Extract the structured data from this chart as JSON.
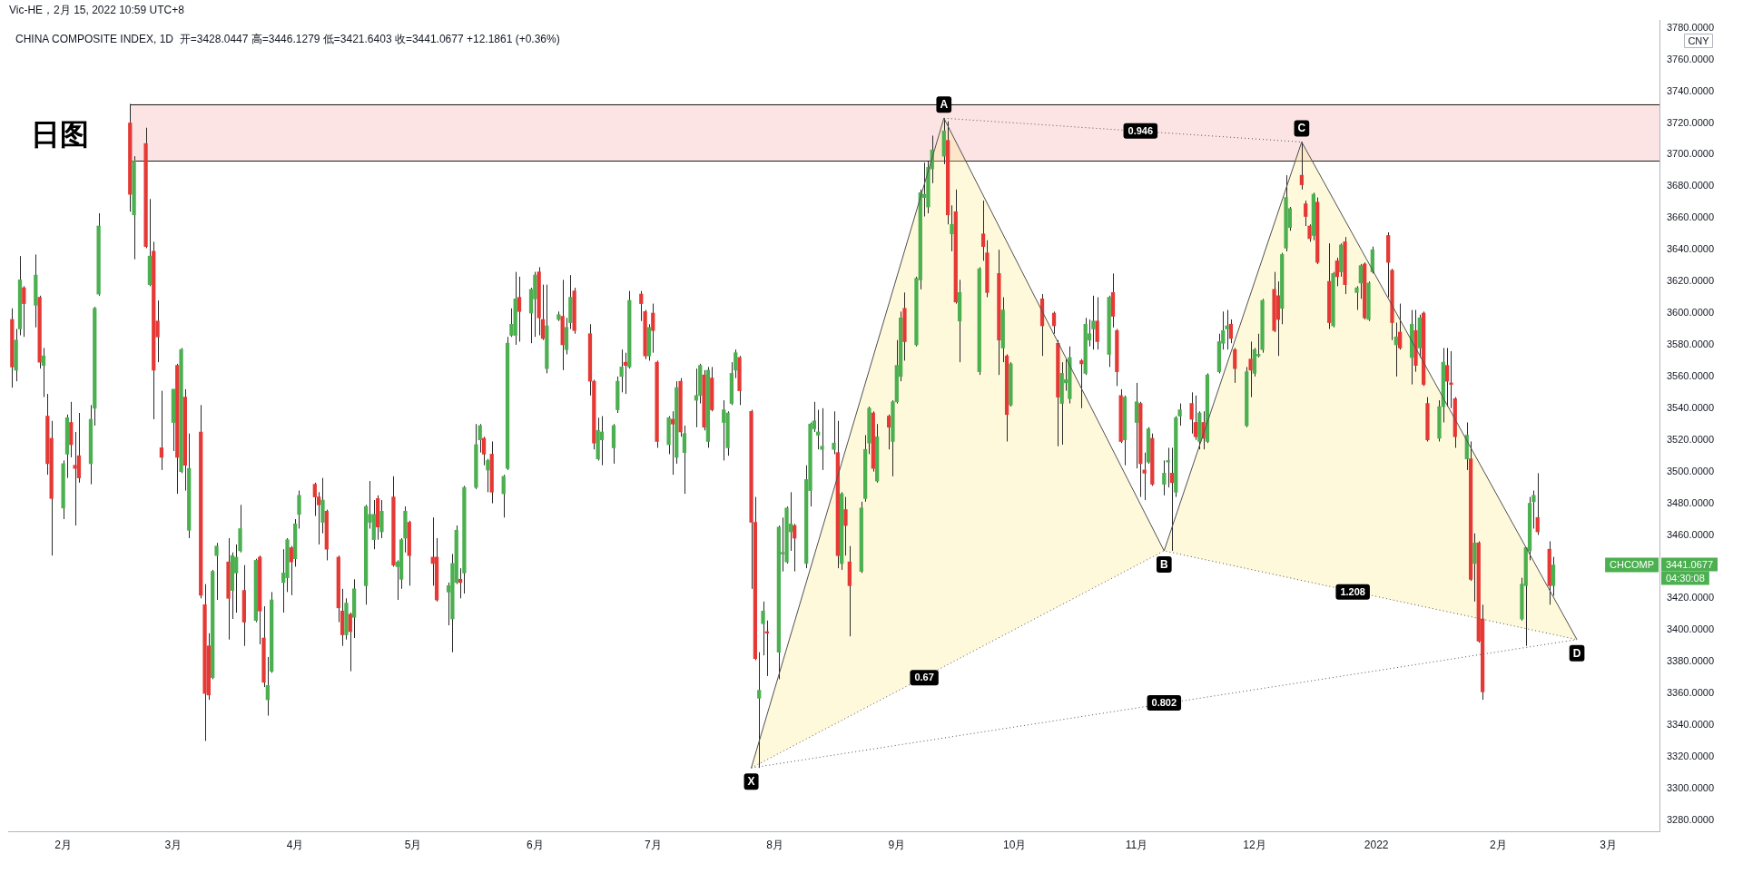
{
  "chart_data": {
    "type": "candlestick",
    "title": "日图",
    "subtitle": "CHINA COMPOSITE INDEX, 1D  开=3428.0447 高=3446.1279 低=3421.6403 收=3441.0677 +12.1861 (+0.36%)",
    "ylabel": "CNY",
    "x": [
      "2021-01-19",
      "2021-01-20",
      "2021-01-21",
      "2021-01-22",
      "2021-01-25",
      "2021-01-26",
      "2021-01-27",
      "2021-01-28",
      "2021-01-29",
      "2021-02-01",
      "2021-02-02",
      "2021-02-03",
      "2021-02-04",
      "2021-02-05",
      "2021-02-08",
      "2021-02-09",
      "2021-02-10",
      "2021-02-18",
      "2021-02-19",
      "2021-02-22",
      "2021-02-23",
      "2021-02-24",
      "2021-02-25",
      "2021-02-26",
      "2021-03-01",
      "2021-03-02",
      "2021-03-03",
      "2021-03-04",
      "2021-03-05",
      "2021-03-08",
      "2021-03-09",
      "2021-03-10",
      "2021-03-11",
      "2021-03-12",
      "2021-03-15",
      "2021-03-16",
      "2021-03-17",
      "2021-03-18",
      "2021-03-19",
      "2021-03-22",
      "2021-03-23",
      "2021-03-24",
      "2021-03-25",
      "2021-03-26",
      "2021-03-29",
      "2021-03-30",
      "2021-03-31",
      "2021-04-01",
      "2021-04-02",
      "2021-04-06",
      "2021-04-07",
      "2021-04-08",
      "2021-04-09",
      "2021-04-12",
      "2021-04-13",
      "2021-04-14",
      "2021-04-15",
      "2021-04-16",
      "2021-04-19",
      "2021-04-20",
      "2021-04-21",
      "2021-04-22",
      "2021-04-23",
      "2021-04-26",
      "2021-04-27",
      "2021-04-28",
      "2021-04-29",
      "2021-04-30",
      "2021-05-06",
      "2021-05-07",
      "2021-05-10",
      "2021-05-11",
      "2021-05-12",
      "2021-05-13",
      "2021-05-14",
      "2021-05-17",
      "2021-05-18",
      "2021-05-19",
      "2021-05-20",
      "2021-05-21",
      "2021-05-24",
      "2021-05-25",
      "2021-05-26",
      "2021-05-27",
      "2021-05-28",
      "2021-05-31",
      "2021-06-01",
      "2021-06-02",
      "2021-06-03",
      "2021-06-04",
      "2021-06-07",
      "2021-06-08",
      "2021-06-09",
      "2021-06-10",
      "2021-06-11",
      "2021-06-15",
      "2021-06-16",
      "2021-06-17",
      "2021-06-18",
      "2021-06-21",
      "2021-06-22",
      "2021-06-23",
      "2021-06-24",
      "2021-06-25",
      "2021-06-28",
      "2021-06-29",
      "2021-06-30",
      "2021-07-01",
      "2021-07-02",
      "2021-07-05",
      "2021-07-06",
      "2021-07-07",
      "2021-07-08",
      "2021-07-09",
      "2021-07-12",
      "2021-07-13",
      "2021-07-14",
      "2021-07-15",
      "2021-07-16",
      "2021-07-19",
      "2021-07-20",
      "2021-07-21",
      "2021-07-22",
      "2021-07-23",
      "2021-07-26",
      "2021-07-27",
      "2021-07-28",
      "2021-07-29",
      "2021-07-30",
      "2021-08-02",
      "2021-08-03",
      "2021-08-04",
      "2021-08-05",
      "2021-08-06",
      "2021-08-09",
      "2021-08-10",
      "2021-08-11",
      "2021-08-12",
      "2021-08-13",
      "2021-08-16",
      "2021-08-17",
      "2021-08-18",
      "2021-08-19",
      "2021-08-20",
      "2021-08-23",
      "2021-08-24",
      "2021-08-25",
      "2021-08-26",
      "2021-08-27",
      "2021-08-30",
      "2021-08-31",
      "2021-09-01",
      "2021-09-02",
      "2021-09-03",
      "2021-09-06",
      "2021-09-07",
      "2021-09-08",
      "2021-09-09",
      "2021-09-10",
      "2021-09-13",
      "2021-09-14",
      "2021-09-15",
      "2021-09-16",
      "2021-09-17",
      "2021-09-22",
      "2021-09-23",
      "2021-09-24",
      "2021-09-27",
      "2021-09-28",
      "2021-09-29",
      "2021-09-30",
      "2021-10-08",
      "2021-10-11",
      "2021-10-12",
      "2021-10-13",
      "2021-10-14",
      "2021-10-15",
      "2021-10-18",
      "2021-10-19",
      "2021-10-20",
      "2021-10-21",
      "2021-10-22",
      "2021-10-25",
      "2021-10-26",
      "2021-10-27",
      "2021-10-28",
      "2021-10-29",
      "2021-11-01",
      "2021-11-02",
      "2021-11-03",
      "2021-11-04",
      "2021-11-05",
      "2021-11-08",
      "2021-11-09",
      "2021-11-10",
      "2021-11-11",
      "2021-11-12",
      "2021-11-15",
      "2021-11-16",
      "2021-11-17",
      "2021-11-18",
      "2021-11-19",
      "2021-11-22",
      "2021-11-23",
      "2021-11-24",
      "2021-11-25",
      "2021-11-26",
      "2021-11-29",
      "2021-11-30",
      "2021-12-01",
      "2021-12-02",
      "2021-12-03",
      "2021-12-06",
      "2021-12-07",
      "2021-12-08",
      "2021-12-09",
      "2021-12-10",
      "2021-12-13",
      "2021-12-14",
      "2021-12-15",
      "2021-12-16",
      "2021-12-17",
      "2021-12-20",
      "2021-12-21",
      "2021-12-22",
      "2021-12-23",
      "2021-12-24",
      "2021-12-27",
      "2021-12-28",
      "2021-12-29",
      "2021-12-30",
      "2021-12-31",
      "2022-01-04",
      "2022-01-05",
      "2022-01-06",
      "2022-01-07",
      "2022-01-10",
      "2022-01-11",
      "2022-01-12",
      "2022-01-13",
      "2022-01-14",
      "2022-01-17",
      "2022-01-18",
      "2022-01-19",
      "2022-01-20",
      "2022-01-21",
      "2022-01-24",
      "2022-01-25",
      "2022-01-26",
      "2022-01-27",
      "2022-01-28",
      "2022-02-07",
      "2022-02-08",
      "2022-02-09",
      "2022-02-10",
      "2022-02-11",
      "2022-02-14",
      "2022-02-15"
    ],
    "ohlc": [
      [
        3596,
        3603,
        3553,
        3566
      ],
      [
        3564,
        3590,
        3557,
        3583
      ],
      [
        3590,
        3636,
        3586,
        3621
      ],
      [
        3616,
        3617,
        3585,
        3606
      ],
      [
        3605,
        3637,
        3591,
        3624
      ],
      [
        3610,
        3611,
        3565,
        3569
      ],
      [
        3567,
        3578,
        3547,
        3573
      ],
      [
        3535,
        3549,
        3498,
        3505
      ],
      [
        3521,
        3532,
        3447,
        3483
      ],
      [
        3477,
        3507,
        3470,
        3505
      ],
      [
        3511,
        3536,
        3496,
        3534
      ],
      [
        3531,
        3544,
        3509,
        3517
      ],
      [
        3504,
        3525,
        3466,
        3502
      ],
      [
        3510,
        3537,
        3493,
        3496
      ],
      [
        3505,
        3542,
        3492,
        3533
      ],
      [
        3540,
        3604,
        3529,
        3603
      ],
      [
        3612,
        3663,
        3611,
        3655
      ],
      [
        3720,
        3732,
        3664,
        3675
      ],
      [
        3662,
        3699,
        3634,
        3696
      ],
      [
        3707,
        3717,
        3641,
        3642
      ],
      [
        3618,
        3672,
        3617,
        3636
      ],
      [
        3639,
        3645,
        3533,
        3564
      ],
      [
        3595,
        3608,
        3569,
        3585
      ],
      [
        3515,
        3551,
        3501,
        3509
      ],
      [
        3531,
        3552,
        3513,
        3552
      ],
      [
        3567,
        3568,
        3486,
        3509
      ],
      [
        3500,
        3578,
        3499,
        3577
      ],
      [
        3547,
        3552,
        3488,
        3504
      ],
      [
        3463,
        3524,
        3458,
        3502
      ],
      [
        3525,
        3542,
        3420,
        3422
      ],
      [
        3416,
        3429,
        3330,
        3360
      ],
      [
        3390,
        3398,
        3356,
        3359
      ],
      [
        3370,
        3438,
        3369,
        3437
      ],
      [
        3447,
        3455,
        3419,
        3453
      ],
      [
        3443,
        3458,
        3394,
        3420
      ],
      [
        3425,
        3449,
        3407,
        3447
      ],
      [
        3436,
        3454,
        3411,
        3446
      ],
      [
        3450,
        3479,
        3449,
        3464
      ],
      [
        3425,
        3441,
        3390,
        3405
      ],
      [
        3406,
        3445,
        3405,
        3444
      ],
      [
        3446,
        3447,
        3391,
        3412
      ],
      [
        3395,
        3415,
        3364,
        3367
      ],
      [
        3356,
        3383,
        3346,
        3365
      ],
      [
        3374,
        3424,
        3373,
        3419
      ],
      [
        3430,
        3451,
        3411,
        3436
      ],
      [
        3433,
        3458,
        3424,
        3457
      ],
      [
        3452,
        3453,
        3422,
        3443
      ],
      [
        3445,
        3470,
        3440,
        3467
      ],
      [
        3473,
        3488,
        3464,
        3485
      ],
      [
        3492,
        3493,
        3472,
        3484
      ],
      [
        3484,
        3487,
        3454,
        3479
      ],
      [
        3468,
        3496,
        3461,
        3482
      ],
      [
        3475,
        3476,
        3444,
        3451
      ],
      [
        3446,
        3447,
        3405,
        3414
      ],
      [
        3412,
        3426,
        3390,
        3397
      ],
      [
        3397,
        3420,
        3394,
        3417
      ],
      [
        3410,
        3411,
        3374,
        3399
      ],
      [
        3408,
        3432,
        3395,
        3426
      ],
      [
        3428,
        3479,
        3416,
        3478
      ],
      [
        3468,
        3494,
        3464,
        3473
      ],
      [
        3457,
        3482,
        3451,
        3473
      ],
      [
        3483,
        3485,
        3457,
        3465
      ],
      [
        3462,
        3482,
        3458,
        3475
      ],
      [
        3484,
        3497,
        3440,
        3441
      ],
      [
        3440,
        3444,
        3419,
        3443
      ],
      [
        3432,
        3458,
        3426,
        3457
      ],
      [
        3458,
        3478,
        3449,
        3475
      ],
      [
        3468,
        3469,
        3428,
        3447
      ],
      [
        3446,
        3471,
        3428,
        3442
      ],
      [
        3446,
        3458,
        3418,
        3419
      ],
      [
        3424,
        3430,
        3403,
        3428
      ],
      [
        3407,
        3448,
        3386,
        3442
      ],
      [
        3430,
        3466,
        3429,
        3463
      ],
      [
        3432,
        3439,
        3420,
        3430
      ],
      [
        3436,
        3491,
        3423,
        3490
      ],
      [
        3490,
        3530,
        3489,
        3517
      ],
      [
        3520,
        3530,
        3512,
        3529
      ],
      [
        3521,
        3522,
        3504,
        3511
      ],
      [
        3501,
        3508,
        3487,
        3507
      ],
      [
        3511,
        3519,
        3480,
        3487
      ],
      [
        3486,
        3498,
        3471,
        3497
      ],
      [
        3502,
        3585,
        3501,
        3581
      ],
      [
        3586,
        3603,
        3585,
        3593
      ],
      [
        3586,
        3626,
        3580,
        3609
      ],
      [
        3610,
        3623,
        3582,
        3601
      ],
      [
        3600,
        3616,
        3581,
        3615
      ],
      [
        3609,
        3626,
        3585,
        3624
      ],
      [
        3626,
        3629,
        3586,
        3597
      ],
      [
        3596,
        3618,
        3583,
        3584
      ],
      [
        3565,
        3618,
        3562,
        3592
      ],
      [
        3596,
        3601,
        3595,
        3599
      ],
      [
        3598,
        3621,
        3564,
        3580
      ],
      [
        3577,
        3597,
        3574,
        3591
      ],
      [
        3594,
        3624,
        3590,
        3610
      ],
      [
        3614,
        3616,
        3587,
        3589
      ],
      [
        3587,
        3593,
        3548,
        3557
      ],
      [
        3557,
        3558,
        3514,
        3518
      ],
      [
        3508,
        3534,
        3507,
        3526
      ],
      [
        3520,
        3535,
        3504,
        3525
      ],
      [
        3515,
        3530,
        3505,
        3529
      ],
      [
        3539,
        3560,
        3537,
        3557
      ],
      [
        3560,
        3577,
        3550,
        3566
      ],
      [
        3569,
        3575,
        3549,
        3567
      ],
      [
        3566,
        3614,
        3565,
        3608
      ],
      [
        3612,
        3614,
        3595,
        3606
      ],
      [
        3601,
        3602,
        3571,
        3573
      ],
      [
        3573,
        3593,
        3570,
        3591
      ],
      [
        3600,
        3606,
        3575,
        3589
      ],
      [
        3569,
        3570,
        3515,
        3519
      ],
      [
        3517,
        3535,
        3511,
        3534
      ],
      [
        3533,
        3538,
        3498,
        3530
      ],
      [
        3509,
        3557,
        3505,
        3553
      ],
      [
        3557,
        3559,
        3522,
        3525
      ],
      [
        3512,
        3529,
        3486,
        3524
      ],
      [
        3545,
        3565,
        3528,
        3548
      ],
      [
        3548,
        3568,
        3543,
        3567
      ],
      [
        3561,
        3564,
        3526,
        3528
      ],
      [
        3519,
        3566,
        3515,
        3564
      ],
      [
        3559,
        3566,
        3538,
        3539
      ],
      [
        3531,
        3545,
        3507,
        3539
      ],
      [
        3515,
        3538,
        3510,
        3537
      ],
      [
        3543,
        3569,
        3542,
        3562
      ],
      [
        3564,
        3577,
        3559,
        3575
      ],
      [
        3572,
        3573,
        3542,
        3551
      ],
      [
        3538,
        3539,
        3426,
        3468
      ],
      [
        3468,
        3484,
        3381,
        3382
      ],
      [
        3357,
        3386,
        3313,
        3362
      ],
      [
        3404,
        3418,
        3384,
        3412
      ],
      [
        3399,
        3406,
        3371,
        3398
      ],
      [
        3386,
        3466,
        3369,
        3465
      ],
      [
        3448,
        3471,
        3437,
        3449
      ],
      [
        3443,
        3478,
        3442,
        3477
      ],
      [
        3462,
        3487,
        3450,
        3467
      ],
      [
        3466,
        3467,
        3437,
        3458
      ],
      [
        3442,
        3504,
        3439,
        3495
      ],
      [
        3488,
        3531,
        3478,
        3530
      ],
      [
        3527,
        3544,
        3525,
        3532
      ],
      [
        3523,
        3539,
        3514,
        3525
      ],
      [
        3514,
        3540,
        3501,
        3516
      ],
      [
        3514,
        3538,
        3511,
        3518
      ],
      [
        3512,
        3532,
        3439,
        3447
      ],
      [
        3442,
        3487,
        3438,
        3486
      ],
      [
        3476,
        3484,
        3447,
        3466
      ],
      [
        3443,
        3453,
        3396,
        3428
      ],
      [
        3437,
        3481,
        3436,
        3477
      ],
      [
        3483,
        3523,
        3481,
        3514
      ],
      [
        3518,
        3541,
        3511,
        3540
      ],
      [
        3537,
        3538,
        3500,
        3502
      ],
      [
        3494,
        3530,
        3493,
        3522
      ],
      [
        3535,
        3536,
        3514,
        3528
      ],
      [
        3519,
        3545,
        3497,
        3544
      ],
      [
        3544,
        3583,
        3543,
        3567
      ],
      [
        3560,
        3601,
        3557,
        3597
      ],
      [
        3603,
        3613,
        3570,
        3582
      ],
      [
        3580,
        3623,
        3579,
        3622
      ],
      [
        3621,
        3678,
        3615,
        3676
      ],
      [
        3673,
        3695,
        3661,
        3675
      ],
      [
        3667,
        3696,
        3663,
        3692
      ],
      [
        3691,
        3712,
        3682,
        3703
      ],
      [
        3699,
        3723,
        3694,
        3715
      ],
      [
        3709,
        3721,
        3656,
        3662
      ],
      [
        3650,
        3668,
        3639,
        3656
      ],
      [
        3664,
        3678,
        3606,
        3607
      ],
      [
        3595,
        3621,
        3569,
        3613
      ],
      [
        3563,
        3629,
        3561,
        3628
      ],
      [
        3650,
        3671,
        3633,
        3642
      ],
      [
        3638,
        3646,
        3610,
        3613
      ],
      [
        3625,
        3640,
        3561,
        3583
      ],
      [
        3578,
        3610,
        3569,
        3602
      ],
      [
        3573,
        3574,
        3519,
        3536
      ],
      [
        3542,
        3569,
        3541,
        3568
      ],
      [
        3609,
        3612,
        3573,
        3592
      ],
      [
        3600,
        3601,
        3587,
        3592
      ],
      [
        3581,
        3583,
        3516,
        3547
      ],
      [
        3543,
        3569,
        3517,
        3562
      ],
      [
        3556,
        3571,
        3551,
        3558
      ],
      [
        3546,
        3579,
        3543,
        3572
      ],
      [
        3570,
        3571,
        3540,
        3568
      ],
      [
        3562,
        3597,
        3561,
        3593
      ],
      [
        3583,
        3596,
        3579,
        3587
      ],
      [
        3590,
        3611,
        3577,
        3595
      ],
      [
        3595,
        3610,
        3577,
        3582
      ],
      [
        3574,
        3611,
        3566,
        3610
      ],
      [
        3613,
        3625,
        3591,
        3598
      ],
      [
        3589,
        3590,
        3554,
        3563
      ],
      [
        3548,
        3552,
        3518,
        3519
      ],
      [
        3520,
        3548,
        3504,
        3547
      ],
      [
        3531,
        3556,
        3502,
        3544
      ],
      [
        3543,
        3544,
        3484,
        3505
      ],
      [
        3501,
        3512,
        3482,
        3499
      ],
      [
        3506,
        3528,
        3505,
        3527
      ],
      [
        3521,
        3524,
        3491,
        3492
      ],
      [
        3492,
        3507,
        3485,
        3499
      ],
      [
        3506,
        3515,
        3490,
        3507
      ],
      [
        3499,
        3515,
        3450,
        3493
      ],
      [
        3487,
        3535,
        3484,
        3534
      ],
      [
        3535,
        3543,
        3529,
        3539
      ],
      [
        3543,
        3550,
        3524,
        3533
      ],
      [
        3531,
        3548,
        3520,
        3522
      ],
      [
        3519,
        3538,
        3514,
        3537
      ],
      [
        3531,
        3538,
        3514,
        3521
      ],
      [
        3519,
        3562,
        3518,
        3561
      ],
      [
        3563,
        3587,
        3562,
        3582
      ],
      [
        3581,
        3601,
        3577,
        3589
      ],
      [
        3590,
        3602,
        3577,
        3592
      ],
      [
        3593,
        3596,
        3581,
        3584
      ],
      [
        3577,
        3578,
        3556,
        3565
      ],
      [
        3529,
        3566,
        3528,
        3563
      ],
      [
        3571,
        3582,
        3547,
        3564
      ],
      [
        3562,
        3578,
        3560,
        3577
      ],
      [
        3573,
        3587,
        3572,
        3574
      ],
      [
        3577,
        3609,
        3575,
        3608
      ],
      [
        3615,
        3626,
        3588,
        3589
      ],
      [
        3611,
        3620,
        3573,
        3596
      ],
      [
        3603,
        3638,
        3593,
        3637
      ],
      [
        3641,
        3687,
        3639,
        3673
      ],
      [
        3654,
        3667,
        3652,
        3666
      ],
      [
        3687,
        3708,
        3678,
        3681
      ],
      [
        3669,
        3671,
        3655,
        3661
      ],
      [
        3655,
        3656,
        3645,
        3647
      ],
      [
        3649,
        3676,
        3646,
        3675
      ],
      [
        3670,
        3673,
        3631,
        3632
      ],
      [
        3620,
        3644,
        3590,
        3594
      ],
      [
        3592,
        3626,
        3591,
        3625
      ],
      [
        3633,
        3635,
        3617,
        3623
      ],
      [
        3626,
        3644,
        3623,
        3643
      ],
      [
        3645,
        3648,
        3612,
        3618
      ],
      [
        3613,
        3617,
        3602,
        3616
      ],
      [
        3619,
        3631,
        3609,
        3630
      ],
      [
        3631,
        3632,
        3596,
        3597
      ],
      [
        3596,
        3620,
        3595,
        3619
      ],
      [
        3626,
        3642,
        3625,
        3640
      ],
      [
        3649,
        3651,
        3610,
        3632
      ],
      [
        3627,
        3628,
        3583,
        3594
      ],
      [
        3580,
        3594,
        3560,
        3585
      ],
      [
        3588,
        3606,
        3577,
        3578
      ],
      [
        3572,
        3602,
        3555,
        3593
      ],
      [
        3589,
        3602,
        3563,
        3567
      ],
      [
        3578,
        3599,
        3572,
        3597
      ],
      [
        3600,
        3601,
        3554,
        3555
      ],
      [
        3543,
        3547,
        3519,
        3520
      ],
      [
        3521,
        3545,
        3519,
        3541
      ],
      [
        3541,
        3578,
        3531,
        3569
      ],
      [
        3567,
        3578,
        3541,
        3557
      ],
      [
        3556,
        3576,
        3540,
        3555
      ],
      [
        3546,
        3547,
        3515,
        3522
      ],
      [
        3508,
        3531,
        3501,
        3523
      ],
      [
        3508,
        3519,
        3431,
        3432
      ],
      [
        3442,
        3461,
        3418,
        3455
      ],
      [
        3455,
        3456,
        3392,
        3393
      ],
      [
        3407,
        3416,
        3356,
        3361
      ],
      [
        3407,
        3433,
        3406,
        3429
      ],
      [
        3428,
        3452,
        3390,
        3452
      ],
      [
        3450,
        3484,
        3444,
        3480
      ],
      [
        3481,
        3488,
        3464,
        3485
      ],
      [
        3471,
        3499,
        3460,
        3462
      ],
      [
        3451,
        3456,
        3416,
        3428
      ],
      [
        3428.0447,
        3446.1279,
        3421.6403,
        3441.0677
      ]
    ],
    "colors": [
      "#e53935",
      "#4caf50",
      "#4caf50",
      "#e53935",
      "#4caf50",
      "#e53935",
      "#4caf50",
      "#e53935",
      "#e53935",
      "#4caf50",
      "#4caf50",
      "#e53935",
      "#e53935",
      "#e53935",
      "#4caf50",
      "#4caf50",
      "#4caf50",
      "#e53935",
      "#4caf50",
      "#e53935",
      "#4caf50",
      "#e53935",
      "#e53935",
      "#e53935",
      "#4caf50",
      "#e53935",
      "#4caf50",
      "#e53935",
      "#4caf50",
      "#e53935",
      "#e53935",
      "#e53935",
      "#4caf50",
      "#4caf50",
      "#e53935",
      "#4caf50",
      "#4caf50",
      "#4caf50",
      "#e53935",
      "#4caf50",
      "#e53935",
      "#e53935",
      "#4caf50",
      "#4caf50",
      "#4caf50",
      "#4caf50",
      "#e53935",
      "#4caf50",
      "#4caf50",
      "#e53935",
      "#e53935",
      "#4caf50",
      "#e53935",
      "#e53935",
      "#e53935",
      "#4caf50",
      "#e53935",
      "#4caf50",
      "#4caf50",
      "#4caf50",
      "#4caf50",
      "#e53935",
      "#4caf50",
      "#e53935",
      "#4caf50",
      "#4caf50",
      "#4caf50",
      "#e53935",
      "#e53935",
      "#e53935",
      "#4caf50",
      "#4caf50",
      "#4caf50",
      "#e53935",
      "#4caf50",
      "#4caf50",
      "#4caf50",
      "#e53935",
      "#4caf50",
      "#e53935",
      "#4caf50",
      "#4caf50",
      "#4caf50",
      "#4caf50",
      "#e53935",
      "#4caf50",
      "#4caf50",
      "#e53935",
      "#e53935",
      "#4caf50",
      "#4caf50",
      "#e53935",
      "#4caf50",
      "#4caf50",
      "#e53935",
      "#e53935",
      "#e53935",
      "#4caf50",
      "#4caf50",
      "#4caf50",
      "#4caf50",
      "#4caf50",
      "#e53935",
      "#4caf50",
      "#e53935",
      "#e53935",
      "#4caf50",
      "#e53935",
      "#e53935",
      "#4caf50",
      "#e53935",
      "#4caf50",
      "#e53935",
      "#4caf50",
      "#4caf50",
      "#4caf50",
      "#e53935",
      "#4caf50",
      "#e53935",
      "#4caf50",
      "#4caf50",
      "#4caf50",
      "#4caf50",
      "#e53935",
      "#e53935",
      "#e53935",
      "#4caf50",
      "#4caf50",
      "#e53935",
      "#4caf50",
      "#4caf50",
      "#4caf50",
      "#4caf50",
      "#e53935",
      "#4caf50",
      "#4caf50",
      "#4caf50",
      "#4caf50",
      "#4caf50",
      "#4caf50",
      "#e53935",
      "#4caf50",
      "#e53935",
      "#e53935",
      "#4caf50",
      "#4caf50",
      "#4caf50",
      "#e53935",
      "#4caf50",
      "#e53935",
      "#4caf50",
      "#4caf50",
      "#4caf50",
      "#e53935",
      "#4caf50",
      "#4caf50",
      "#4caf50",
      "#4caf50",
      "#4caf50",
      "#4caf50",
      "#e53935",
      "#4caf50",
      "#e53935",
      "#4caf50",
      "#4caf50",
      "#e53935",
      "#e53935",
      "#e53935",
      "#4caf50",
      "#e53935",
      "#4caf50",
      "#e53935",
      "#e53935",
      "#e53935",
      "#4caf50",
      "#4caf50",
      "#4caf50",
      "#e53935",
      "#4caf50",
      "#4caf50",
      "#4caf50",
      "#e53935",
      "#4caf50",
      "#e53935",
      "#e53935",
      "#e53935",
      "#4caf50",
      "#4caf50",
      "#e53935",
      "#e53935",
      "#4caf50",
      "#e53935",
      "#4caf50",
      "#4caf50",
      "#e53935",
      "#4caf50",
      "#4caf50",
      "#e53935",
      "#e53935",
      "#4caf50",
      "#e53935",
      "#4caf50",
      "#4caf50",
      "#4caf50",
      "#4caf50",
      "#e53935",
      "#e53935",
      "#4caf50",
      "#e53935",
      "#4caf50",
      "#4caf50",
      "#4caf50",
      "#e53935",
      "#e53935",
      "#4caf50",
      "#4caf50",
      "#4caf50",
      "#e53935",
      "#e53935",
      "#e53935",
      "#4caf50",
      "#e53935",
      "#e53935",
      "#4caf50",
      "#e53935",
      "#4caf50",
      "#e53935",
      "#4caf50",
      "#4caf50",
      "#e53935",
      "#4caf50",
      "#4caf50",
      "#e53935",
      "#e53935",
      "#4caf50",
      "#e53935",
      "#4caf50",
      "#e53935",
      "#4caf50",
      "#e53935",
      "#e53935",
      "#4caf50",
      "#4caf50",
      "#e53935",
      "#e53935",
      "#e53935",
      "#4caf50",
      "#e53935",
      "#4caf50",
      "#e53935",
      "#e53935",
      "#4caf50",
      "#4caf50",
      "#4caf50",
      "#4caf50",
      "#e53935",
      "#e53935",
      "#4caf50"
    ],
    "xlim": [
      "2021-01-18",
      "2022-03-14"
    ],
    "xticks": [
      {
        "value": "2021-02-01",
        "label": "2月"
      },
      {
        "value": "2021-03-01",
        "label": "3月"
      },
      {
        "value": "2021-04-01",
        "label": "4月"
      },
      {
        "value": "2021-05-01",
        "label": "5月"
      },
      {
        "value": "2021-06-01",
        "label": "6月"
      },
      {
        "value": "2021-07-01",
        "label": "7月"
      },
      {
        "value": "2021-08-01",
        "label": "8月"
      },
      {
        "value": "2021-09-01",
        "label": "9月"
      },
      {
        "value": "2021-10-01",
        "label": "10月"
      },
      {
        "value": "2021-11-01",
        "label": "11月"
      },
      {
        "value": "2021-12-01",
        "label": "12月"
      },
      {
        "value": "2022-01-01",
        "label": "2022"
      },
      {
        "value": "2022-02-01",
        "label": "2月"
      },
      {
        "value": "2022-03-01",
        "label": "3月"
      }
    ],
    "ylim": [
      3273,
      3785
    ],
    "yticks": [
      {
        "value": 3280,
        "label": "3280.0000"
      },
      {
        "value": 3300,
        "label": "3300.0000"
      },
      {
        "value": 3320,
        "label": "3320.0000"
      },
      {
        "value": 3340,
        "label": "3340.0000"
      },
      {
        "value": 3360,
        "label": "3360.0000"
      },
      {
        "value": 3380,
        "label": "3380.0000"
      },
      {
        "value": 3400,
        "label": "3400.0000"
      },
      {
        "value": 3420,
        "label": "3420.0000"
      },
      {
        "value": 3460,
        "label": "3460.0000"
      },
      {
        "value": 3480,
        "label": "3480.0000"
      },
      {
        "value": 3500,
        "label": "3500.0000"
      },
      {
        "value": 3520,
        "label": "3520.0000"
      },
      {
        "value": 3540,
        "label": "3540.0000"
      },
      {
        "value": 3560,
        "label": "3560.0000"
      },
      {
        "value": 3580,
        "label": "3580.0000"
      },
      {
        "value": 3600,
        "label": "3600.0000"
      },
      {
        "value": 3620,
        "label": "3620.0000"
      },
      {
        "value": 3640,
        "label": "3640.0000"
      },
      {
        "value": 3660,
        "label": "3660.0000"
      },
      {
        "value": 3680,
        "label": "3680.0000"
      },
      {
        "value": 3700,
        "label": "3700.0000"
      },
      {
        "value": 3720,
        "label": "3720.0000"
      },
      {
        "value": 3740,
        "label": "3740.0000"
      },
      {
        "value": 3760,
        "label": "3760.0000"
      },
      {
        "value": 3780,
        "label": "3780.0000"
      }
    ],
    "bands": [
      {
        "axis": "y",
        "from": 3696,
        "to": 3732,
        "color": "#fce4e4"
      }
    ],
    "series": [
      {
        "type": "line",
        "color": "#505050",
        "x": [
          "2021-07-26",
          "2021-09-13",
          "2021-11-08",
          "2021-12-13",
          "2022-02-21"
        ],
        "values": [
          3313,
          3723,
          3450,
          3708,
          3394
        ],
        "lower": [
          3313,
          3377,
          3450,
          3431,
          3394
        ],
        "upper": [
          3313,
          3723,
          3450,
          3708,
          3394
        ]
      },
      {
        "type": "line",
        "line_style": "dotted",
        "color": "#505050",
        "x": [
          "2021-07-26",
          "2021-11-08",
          "2022-02-21"
        ],
        "values": [
          3313,
          3450,
          3394
        ]
      },
      {
        "type": "line",
        "line_style": "dotted",
        "color": "#505050",
        "x": [
          "2021-09-13",
          "2021-12-13"
        ],
        "values": [
          3723,
          3708
        ]
      },
      {
        "type": "line",
        "line_style": "dotted",
        "color": "#505050",
        "x": [
          "2021-07-26",
          "2022-02-21"
        ],
        "values": [
          3313,
          3394
        ]
      }
    ],
    "annotations": [
      "Vic-HE，2月 15, 2022 10:59 UTC+8",
      {
        "text": "X",
        "x": "2021-07-26",
        "y": 3313
      },
      {
        "text": "A",
        "x": "2021-09-13",
        "y": 3723
      },
      {
        "text": "B",
        "x": "2021-11-08",
        "y": 3450
      },
      {
        "text": "C",
        "x": "2021-12-13",
        "y": 3708
      },
      {
        "text": "D",
        "x": "2022-02-21",
        "y": 3394
      },
      {
        "text": "0.946",
        "x": "2021-11-02",
        "y": 3715
      },
      {
        "text": "0.67",
        "x": "2021-09-08",
        "y": 3370
      },
      {
        "text": "1.208",
        "x": "2021-12-26",
        "y": 3424
      },
      {
        "text": "0.802",
        "x": "2021-11-08",
        "y": 3354
      },
      "CHCOMP",
      "3441.0677",
      "04:30:08"
    ]
  }
}
